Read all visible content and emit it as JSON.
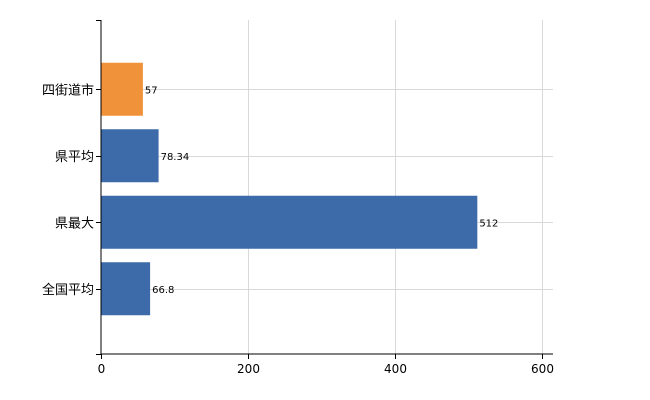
{
  "chart_data": {
    "type": "bar",
    "orientation": "horizontal",
    "title": "",
    "xlabel": "",
    "ylabel": "",
    "categories": [
      "四街道市",
      "県平均",
      "県最大",
      "全国平均"
    ],
    "values": [
      57,
      78.34,
      512,
      66.8
    ],
    "value_labels": [
      "57",
      "78.34",
      "512",
      "66.8"
    ],
    "bar_colors": [
      "#f0923a",
      "#3d6aa8",
      "#3d6aa8",
      "#3d6aa8"
    ],
    "xlim": [
      0,
      600
    ],
    "xticks": [
      0,
      200,
      400,
      600
    ],
    "grid": true,
    "legend": "none"
  }
}
